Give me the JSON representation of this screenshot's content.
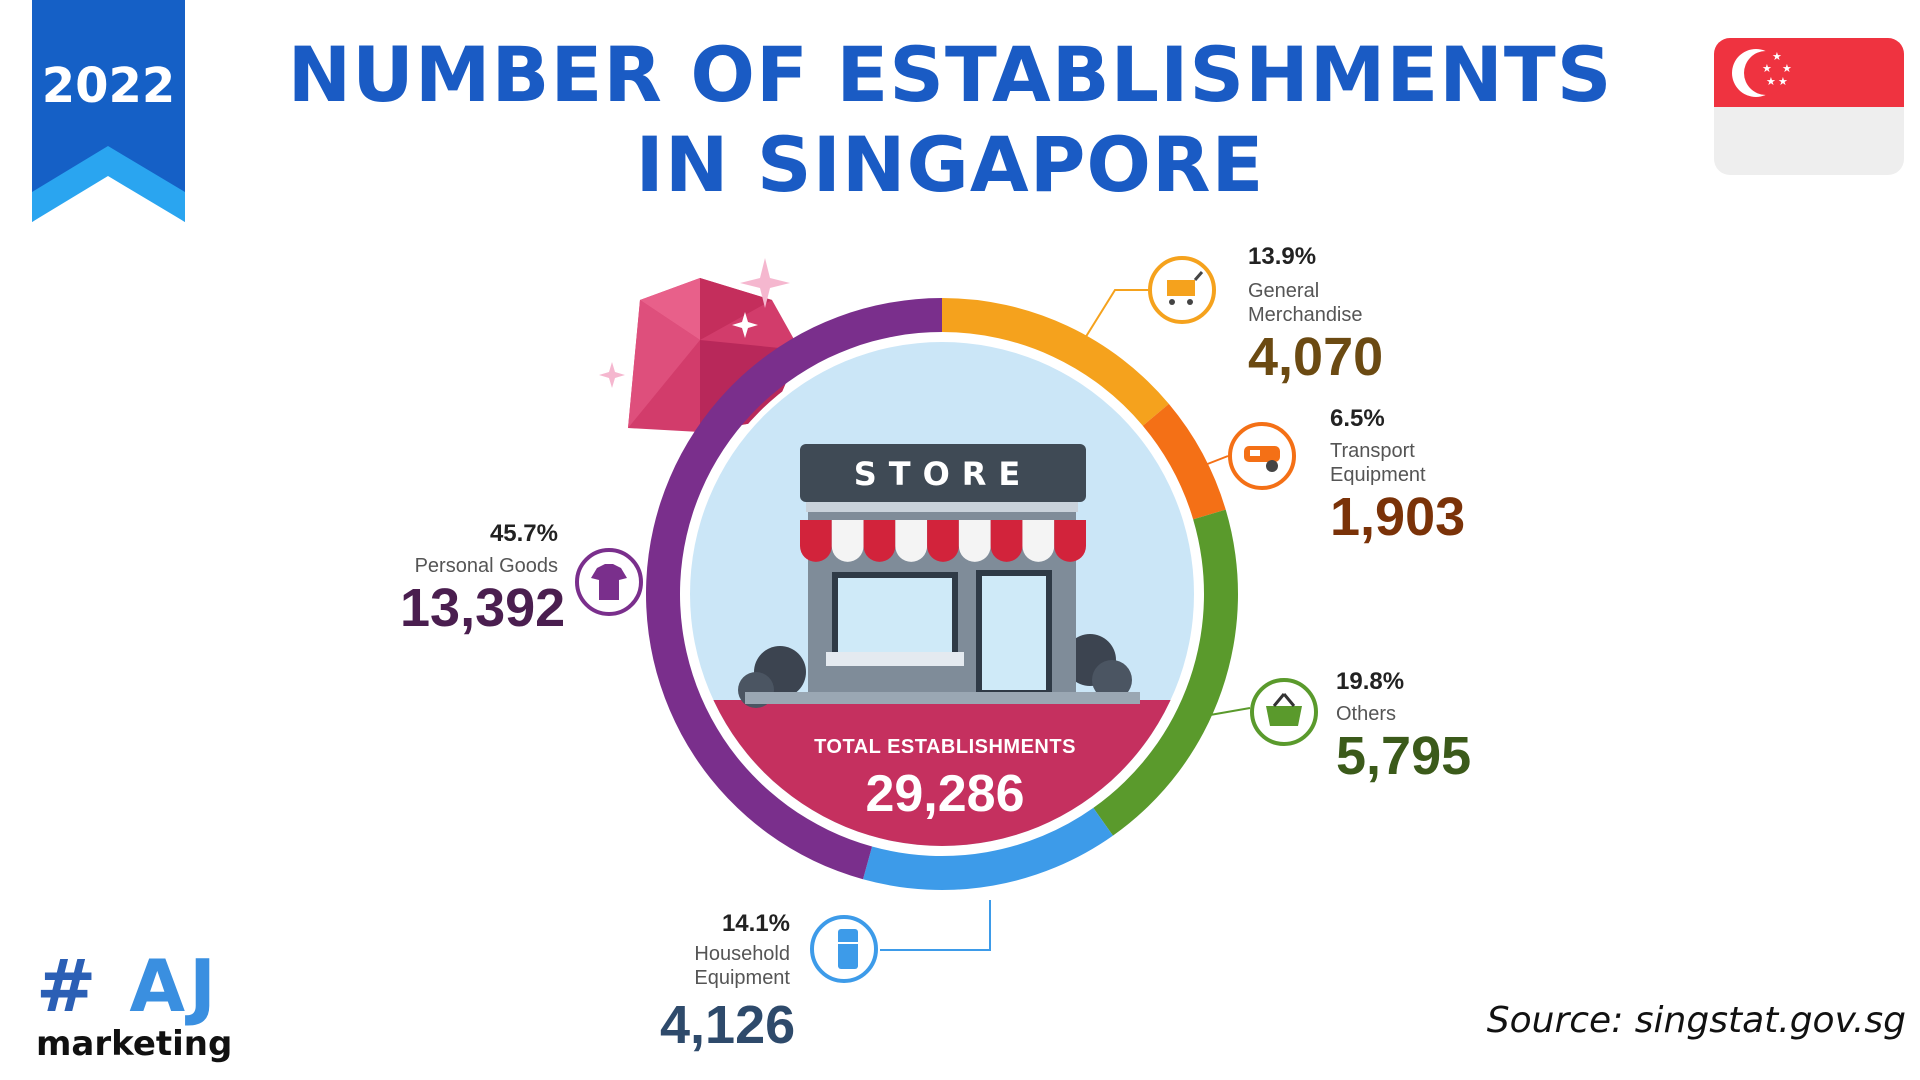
{
  "badge": {
    "year": "2022"
  },
  "title": "NUMBER OF ESTABLISHMENTS IN SINGAPORE",
  "flag": {
    "name": "singapore-flag",
    "colors": {
      "red": "#ef3340",
      "white": "#eeeeee"
    }
  },
  "store_sign": "STORE",
  "total": {
    "label": "TOTAL ESTABLISHMENTS",
    "value": "29,286"
  },
  "chart_data": {
    "type": "pie",
    "total": 29286,
    "slices": [
      {
        "label": "General Merchandise",
        "percent": "13.9%",
        "value": "4,070",
        "share": 13.9,
        "color": "#f5a21d",
        "value_color": "#6b4a12",
        "icon": "shopping-cart-icon"
      },
      {
        "label": "Transport Equipment",
        "percent": "6.5%",
        "value": "1,903",
        "share": 6.5,
        "color": "#f47016",
        "value_color": "#7a3208",
        "icon": "car-icon"
      },
      {
        "label": "Others",
        "percent": "19.8%",
        "value": "5,795",
        "share": 19.8,
        "color": "#5a9a2c",
        "value_color": "#3b5a1a",
        "icon": "basket-icon"
      },
      {
        "label": "Household Equipment",
        "percent": "14.1%",
        "value": "4,126",
        "share": 14.1,
        "color": "#3d9be9",
        "value_color": "#2e4a6b",
        "icon": "refrigerator-icon"
      },
      {
        "label": "Personal Goods",
        "percent": "45.7%",
        "value": "13,392",
        "share": 45.7,
        "color": "#7a2f8c",
        "value_color": "#4a1e4f",
        "icon": "tshirt-icon"
      }
    ]
  },
  "logo": {
    "hash": "#",
    "letters": "AJ",
    "sub": "marketing"
  },
  "source": "Source:  singstat.gov.sg"
}
